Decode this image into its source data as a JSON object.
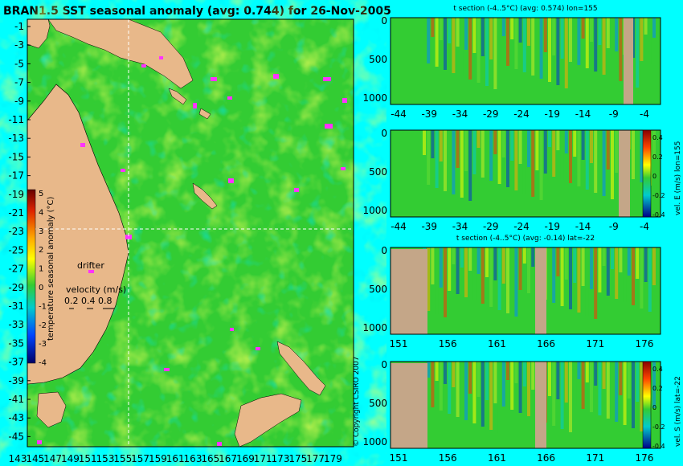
{
  "map": {
    "title": "BRAN1.5 SST seasonal anomaly (avg: 0.744) for 26-Nov-2005",
    "lat_labels": [
      "-1",
      "-3",
      "-5",
      "-7",
      "-9",
      "-11",
      "-13",
      "-15",
      "-17",
      "-19",
      "-21",
      "-23",
      "-25",
      "-27",
      "-29",
      "-31",
      "-33",
      "-35",
      "-37",
      "-39",
      "-41",
      "-43",
      "-45"
    ],
    "lon_labels": [
      "143",
      "145",
      "147",
      "149",
      "151",
      "153",
      "155",
      "157",
      "159",
      "161",
      "163",
      "165",
      "167",
      "169",
      "171",
      "173",
      "175",
      "177",
      "179"
    ],
    "colorbar": {
      "label": "temperature seasonal anomaly (°C)",
      "ticks": [
        "5",
        "4",
        "3",
        "2",
        "1",
        "0",
        "-1",
        "-2",
        "-3",
        "-4"
      ]
    },
    "drifter_label": "drifter",
    "velocity_label": "velocity (m/s)",
    "velocity_scale": "0.2 0.4 0.8",
    "copyright": "© Copyright CSIRO 2007"
  },
  "sections": [
    {
      "title": "t section (-4..5°C) (avg: 0.574) lon=155",
      "x_labels": [
        "-44",
        "-39",
        "-34",
        "-29",
        "-24",
        "-19",
        "-14",
        "-9",
        "-4"
      ],
      "y_labels": [
        "0",
        "500",
        "1000"
      ],
      "side_label": ""
    },
    {
      "title": "",
      "x_labels": [
        "-44",
        "-39",
        "-34",
        "-29",
        "-24",
        "-19",
        "-14",
        "-9",
        "-4"
      ],
      "y_labels": [
        "0",
        "500",
        "1000"
      ],
      "side_label": "vel. E (m/s) lon=155",
      "colorbar_ticks": [
        "0.4",
        "0.2",
        "0",
        "-0.2",
        "-0.4"
      ]
    },
    {
      "title": "t section (-4..5°C) (avg: -0.14) lat=-22",
      "x_labels": [
        "151",
        "156",
        "161",
        "166",
        "171",
        "176"
      ],
      "y_labels": [
        "0",
        "500",
        "1000"
      ],
      "side_label": ""
    },
    {
      "title": "",
      "x_labels": [
        "151",
        "156",
        "161",
        "166",
        "171",
        "176"
      ],
      "y_labels": [
        "0",
        "500",
        "1000"
      ],
      "side_label": "vel. S (m/s) lat=-22",
      "colorbar_ticks": [
        "0.4",
        "0.2",
        "0",
        "-0.2",
        "-0.4"
      ]
    }
  ],
  "colors": {
    "background": "#00ffff",
    "ocean": "#33cc33",
    "land": "#e8b88a",
    "drifters": "#ff33ff",
    "warm": "#ffff00",
    "hot": "#cc0000",
    "cold": "#0033cc",
    "section_land": "#c4a688"
  }
}
